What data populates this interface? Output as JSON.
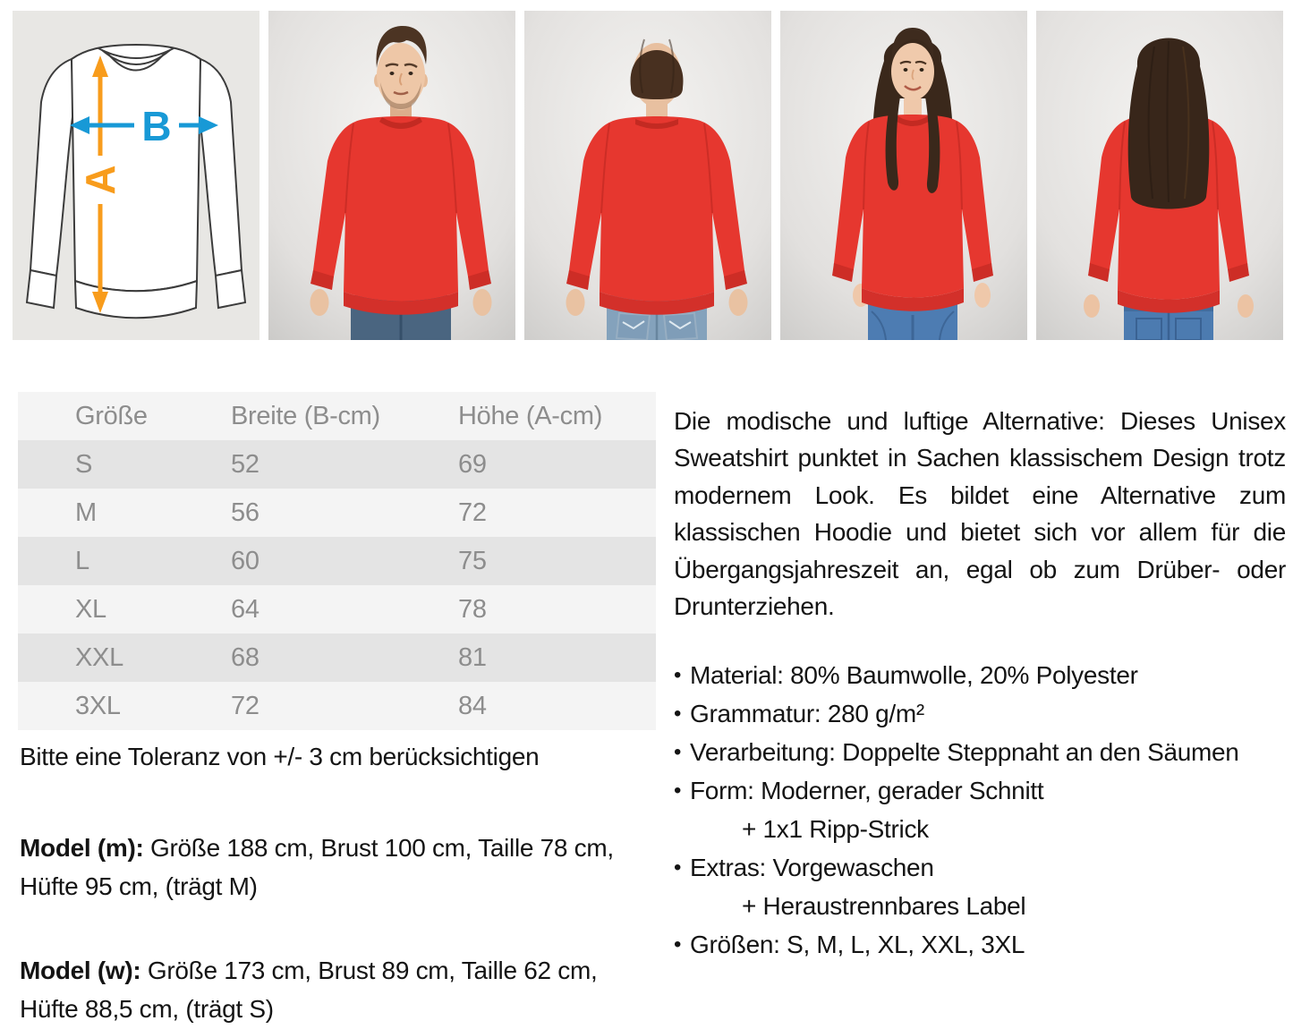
{
  "colors": {
    "sweatshirt_red": "#e6372f",
    "diagram_arrow_orange": "#f89c1c",
    "diagram_arrow_blue": "#1899d6"
  },
  "size_diagram": {
    "label_a": "A",
    "label_b": "B"
  },
  "gallery": {
    "items": [
      "size-diagram",
      "model-male-front",
      "model-male-back",
      "model-female-front",
      "model-female-back"
    ]
  },
  "size_table": {
    "headers": [
      "Größe",
      "Breite (B-cm)",
      "Höhe (A-cm)"
    ],
    "rows": [
      [
        "S",
        "52",
        "69"
      ],
      [
        "M",
        "56",
        "72"
      ],
      [
        "L",
        "60",
        "75"
      ],
      [
        "XL",
        "64",
        "78"
      ],
      [
        "XXL",
        "68",
        "81"
      ],
      [
        "3XL",
        "72",
        "84"
      ]
    ]
  },
  "tolerance_note": "Bitte eine Toleranz von +/- 3 cm berücksichtigen",
  "model_m": {
    "label": "Model (m):",
    "text": " Größe 188 cm, Brust 100 cm, Taille 78 cm, Hüfte 95 cm, (trägt M)"
  },
  "model_w": {
    "label": "Model (w):",
    "text": " Größe 173 cm, Brust 89 cm, Taille 62 cm, Hüfte 88,5 cm, (trägt S)"
  },
  "description": "Die modische und luftige Alternative: Dieses Unisex Sweatshirt punktet in Sachen klassischem Design trotz modernem Look. Es bildet eine Alternative zum klassischen Hoodie und bietet sich vor allem für die Übergangsjahreszeit an, egal ob zum Drüber- oder Drunterziehen.",
  "specs": [
    {
      "text": "Material: 80% Baumwolle, 20% Polyester"
    },
    {
      "text": "Grammatur: 280 g/m²"
    },
    {
      "text": "Verarbeitung: Doppelte Steppnaht an den Säumen"
    },
    {
      "text": "Form: Moderner, gerader Schnitt",
      "cont": "+ 1x1 Ripp-Strick"
    },
    {
      "text": "Extras: Vorgewaschen",
      "cont": "+ Heraustrennbares Label"
    },
    {
      "text": "Größen:  S, M, L, XL, XXL, 3XL"
    }
  ]
}
